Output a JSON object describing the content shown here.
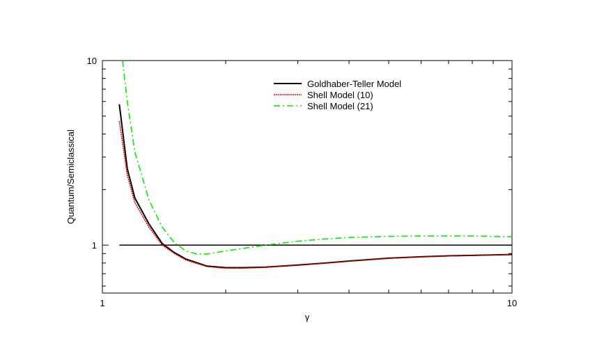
{
  "chart_data": {
    "type": "line",
    "xlabel": "γ",
    "ylabel": "Quantum/Semiclassical",
    "xscale": "log",
    "yscale": "log",
    "xlim": [
      1,
      10
    ],
    "ylim": [
      0.55,
      10
    ],
    "xticks": [
      {
        "value": 1,
        "label": "1"
      },
      {
        "value": 10,
        "label": "10"
      }
    ],
    "yticks": [
      {
        "value": 1,
        "label": "1"
      },
      {
        "value": 10,
        "label": "10"
      }
    ],
    "grid": false,
    "legend_position": "top-center",
    "reference_line": {
      "y": 1,
      "color": "#000000"
    },
    "series": [
      {
        "name": "Goldhaber-Teller Model",
        "color": "#000000",
        "style": "solid",
        "x": [
          1.1,
          1.15,
          1.2,
          1.3,
          1.4,
          1.5,
          1.6,
          1.8,
          2.0,
          2.2,
          2.5,
          3.0,
          3.5,
          4.0,
          5.0,
          6.0,
          7.0,
          8.0,
          10.0
        ],
        "y": [
          5.8,
          2.6,
          1.8,
          1.3,
          1.02,
          0.91,
          0.84,
          0.77,
          0.755,
          0.755,
          0.76,
          0.78,
          0.8,
          0.82,
          0.85,
          0.865,
          0.875,
          0.88,
          0.89
        ]
      },
      {
        "name": "Shell Model (10)",
        "color": "#dd0000",
        "style": "dotted",
        "x": [
          1.1,
          1.15,
          1.2,
          1.3,
          1.4,
          1.5,
          1.6,
          1.8,
          2.0,
          2.2,
          2.5,
          3.0,
          3.5,
          4.0,
          5.0,
          6.0,
          7.0,
          8.0,
          10.0
        ],
        "y": [
          4.7,
          2.4,
          1.7,
          1.25,
          1.0,
          0.9,
          0.83,
          0.765,
          0.75,
          0.75,
          0.758,
          0.778,
          0.798,
          0.818,
          0.848,
          0.863,
          0.873,
          0.878,
          0.89
        ]
      },
      {
        "name": "Shell Model (21)",
        "color": "#00ee00",
        "style": "dashdot",
        "x": [
          1.12,
          1.15,
          1.2,
          1.3,
          1.4,
          1.5,
          1.6,
          1.7,
          1.8,
          2.0,
          2.2,
          2.5,
          3.0,
          3.5,
          4.0,
          5.0,
          6.0,
          7.0,
          8.0,
          10.0
        ],
        "y": [
          10.0,
          6.0,
          3.2,
          1.75,
          1.25,
          1.03,
          0.93,
          0.895,
          0.895,
          0.93,
          0.96,
          1.0,
          1.05,
          1.08,
          1.1,
          1.115,
          1.12,
          1.12,
          1.12,
          1.11
        ]
      }
    ]
  }
}
